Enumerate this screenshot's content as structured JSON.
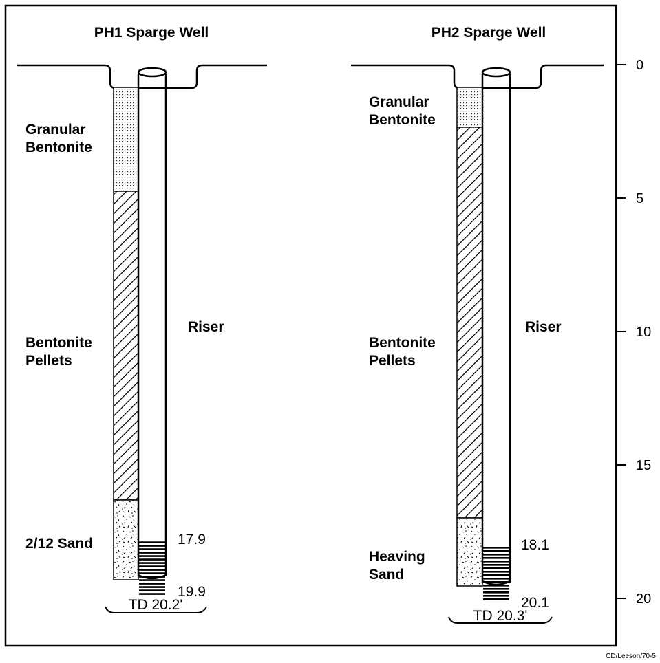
{
  "wells": [
    {
      "title": "PH1 Sparge Well",
      "riser_label": "Riser",
      "layers": [
        {
          "material": "Granular Bentonite",
          "lines": [
            "Granular",
            "Bentonite"
          ],
          "top_ft": 0.8,
          "bottom_ft": 4.9
        },
        {
          "material": "Bentonite Pellets",
          "lines": [
            "Bentonite",
            "Pellets"
          ],
          "top_ft": 4.9,
          "bottom_ft": 16.5
        },
        {
          "material": "2/12 Sand",
          "lines": [
            "2/12 Sand"
          ],
          "top_ft": 16.5,
          "bottom_ft": 20.2
        }
      ],
      "screen_top": "17.9",
      "screen_bottom": "19.9",
      "total_depth": "TD 20.2'"
    },
    {
      "title": "PH2 Sparge Well",
      "riser_label": "Riser",
      "layers": [
        {
          "material": "Granular Bentonite",
          "lines": [
            "Granular",
            "Bentonite"
          ],
          "top_ft": 0.8,
          "bottom_ft": 2.4
        },
        {
          "material": "Bentonite Pellets",
          "lines": [
            "Bentonite",
            "Pellets"
          ],
          "top_ft": 2.4,
          "bottom_ft": 17.1
        },
        {
          "material": "Heaving Sand",
          "lines": [
            "Heaving",
            "Sand"
          ],
          "top_ft": 17.1,
          "bottom_ft": 20.3
        }
      ],
      "screen_top": "18.1",
      "screen_bottom": "20.1",
      "total_depth": "TD 20.3'"
    }
  ],
  "depth_scale": {
    "ticks": [
      "0",
      "5",
      "10",
      "15",
      "20"
    ],
    "min_ft": 0,
    "max_ft": 20
  },
  "credit": "CD/Leeson/70-5"
}
